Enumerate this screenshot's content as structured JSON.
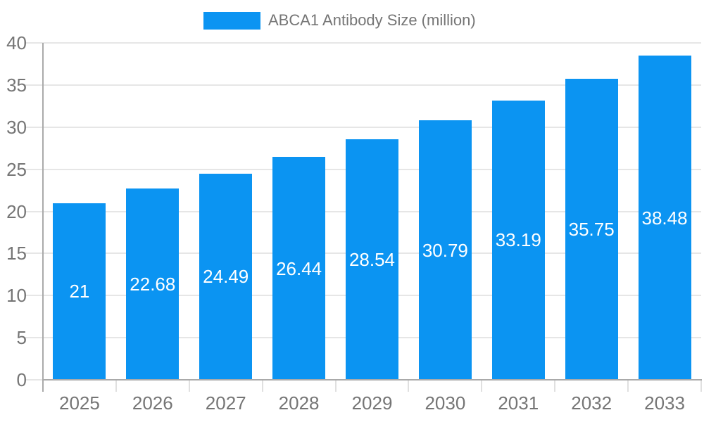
{
  "chart_data": {
    "type": "bar",
    "title": "ABCA1 Antibody Size (million)",
    "categories": [
      "2025",
      "2026",
      "2027",
      "2028",
      "2029",
      "2030",
      "2031",
      "2032",
      "2033"
    ],
    "values": [
      21,
      22.68,
      24.49,
      26.44,
      28.54,
      30.79,
      33.19,
      35.75,
      38.48
    ],
    "value_labels": [
      "21",
      "22.68",
      "24.49",
      "26.44",
      "28.54",
      "30.79",
      "33.19",
      "35.75",
      "38.48"
    ],
    "xlabel": "",
    "ylabel": "",
    "ylim": [
      0,
      40
    ],
    "yticks": [
      0,
      5,
      10,
      15,
      20,
      25,
      30,
      35,
      40
    ],
    "grid": true,
    "legend": {
      "position": "top",
      "label": "ABCA1 Antibody Size (million)"
    },
    "colors": {
      "bar": "#0b94f2",
      "value_label": "#ffffff",
      "axis_text": "#757575",
      "gridline": "#e6e6e6",
      "axis_line": "#aaaaaa",
      "category_tick": "#e0e0e0",
      "background": "#ffffff"
    }
  }
}
